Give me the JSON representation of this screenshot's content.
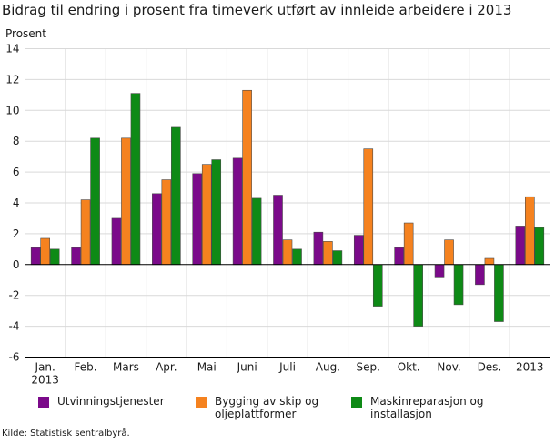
{
  "title": "Bidrag til endring i prosent fra timeverk utført av innleide arbeidere i 2013",
  "source": "Kilde: Statistisk sentralbyrå.",
  "chart_data": {
    "type": "bar",
    "ylabel": "Prosent",
    "xlabel": "",
    "ylim": [
      -6,
      14
    ],
    "yticks": [
      -6,
      -4,
      -2,
      0,
      2,
      4,
      6,
      8,
      10,
      12,
      14
    ],
    "ytick_labels": [
      "-6",
      "-4",
      "-2",
      "0",
      "2",
      "4",
      "6",
      "8",
      "10",
      "12",
      "14"
    ],
    "categories": [
      [
        "Jan.",
        "2013"
      ],
      [
        "Feb."
      ],
      [
        "Mars"
      ],
      [
        "Apr."
      ],
      [
        "Mai"
      ],
      [
        "Juni"
      ],
      [
        "Juli"
      ],
      [
        "Aug."
      ],
      [
        "Sep."
      ],
      [
        "Okt."
      ],
      [
        "Nov."
      ],
      [
        "Des."
      ],
      [
        "2013"
      ]
    ],
    "grid": true,
    "legend_position": "bottom",
    "series": [
      {
        "name": [
          "Utvinningstjenester"
        ],
        "color": "#7b0a8a",
        "values": [
          1.1,
          1.1,
          3.0,
          4.6,
          5.9,
          6.9,
          4.5,
          2.1,
          1.9,
          1.1,
          -0.8,
          -1.3,
          2.5
        ]
      },
      {
        "name": [
          "Bygging av skip og",
          "oljeplattformer"
        ],
        "color": "#f5821f",
        "values": [
          1.7,
          4.2,
          8.2,
          5.5,
          6.5,
          11.3,
          1.6,
          1.5,
          7.5,
          2.7,
          1.6,
          0.4,
          4.4
        ]
      },
      {
        "name": [
          "Maskinreparasjon og",
          "installasjon"
        ],
        "color": "#0e8a16",
        "values": [
          1.0,
          8.2,
          11.1,
          8.9,
          6.8,
          4.3,
          1.0,
          0.9,
          -2.7,
          -4.0,
          -2.6,
          -3.7,
          2.4
        ]
      }
    ]
  }
}
